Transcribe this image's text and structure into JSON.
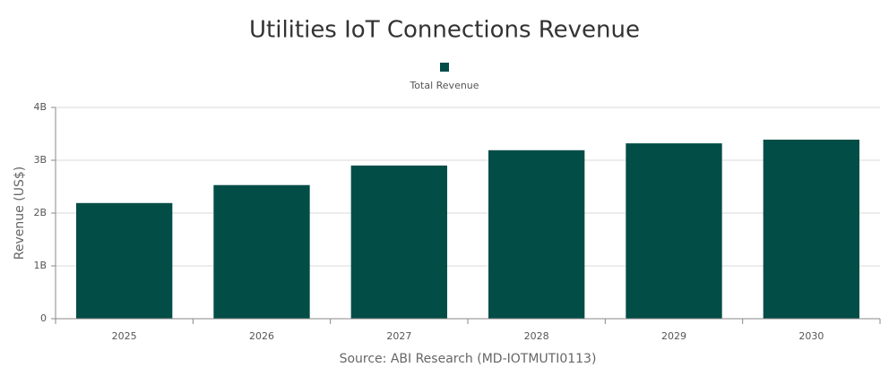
{
  "chart_data": {
    "type": "bar",
    "title": "Utilities IoT Connections Revenue",
    "series": [
      {
        "name": "Total Revenue",
        "color": "#034d47",
        "values": [
          2190000000,
          2530000000,
          2900000000,
          3190000000,
          3320000000,
          3390000000
        ]
      }
    ],
    "categories": [
      "2025",
      "2026",
      "2027",
      "2028",
      "2029",
      "2030"
    ],
    "y_label": "Revenue (US$)",
    "source": "Source: ABI Research (MD-IOTMUTI0113)",
    "ylim": [
      0,
      4000000000
    ],
    "yticks": [
      0,
      {
        "value": 1000000000,
        "label": "1B"
      },
      {
        "value": 2000000000,
        "label": "2B"
      },
      {
        "value": 3000000000,
        "label": "3B"
      },
      {
        "value": 4000000000,
        "label": "4B"
      }
    ],
    "grid": true,
    "legend": "top"
  }
}
